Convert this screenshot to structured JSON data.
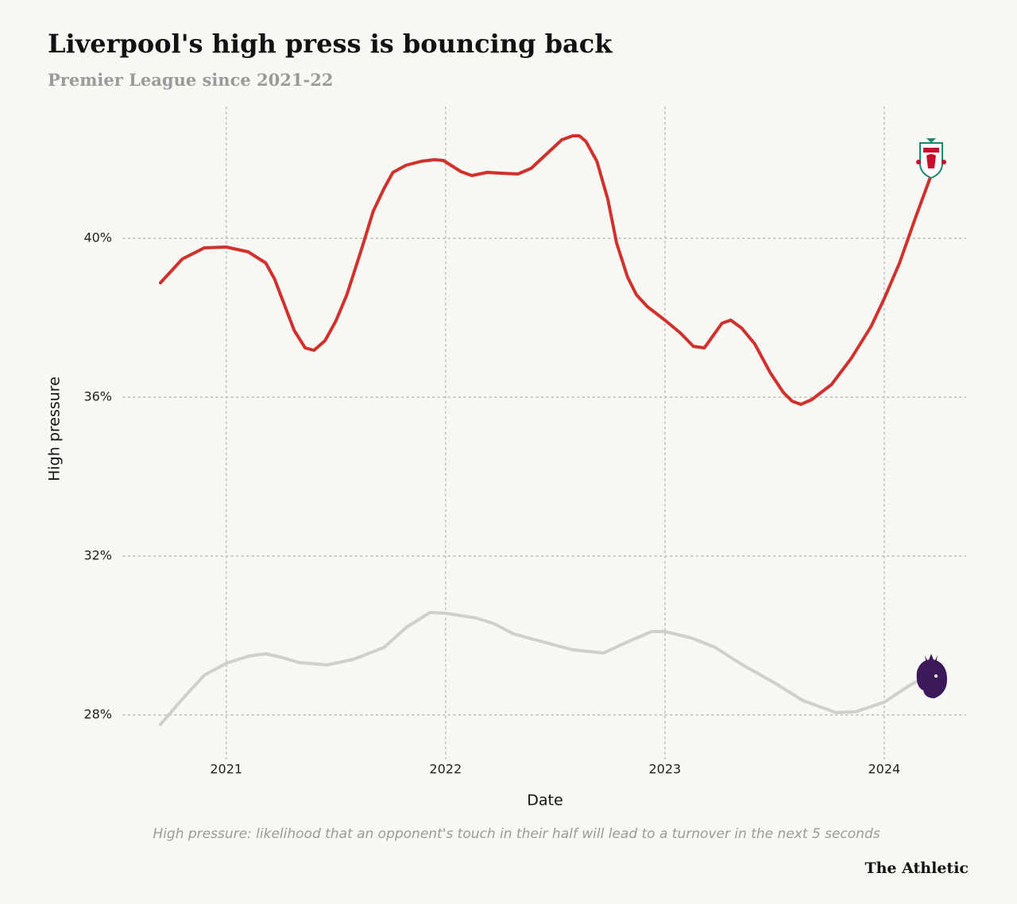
{
  "chart_data": {
    "type": "line",
    "title": "Liverpool's high press is bouncing back",
    "subtitle": "Premier League since 2021-22",
    "x_label": "Date",
    "y_label": "High pressure",
    "note": "High pressure: likelihood that an opponent's touch in their half will lead to a turnover in the next 5 seconds",
    "source": "The Athletic",
    "xlim": [
      2020.53,
      2024.37
    ],
    "xticks": [
      2021,
      2022,
      2023,
      2024
    ],
    "ylim": [
      26.9,
      43.3
    ],
    "yticks": [
      {
        "value": 28,
        "label": "28%"
      },
      {
        "value": 32,
        "label": "32%"
      },
      {
        "value": 36,
        "label": "36%"
      },
      {
        "value": 40,
        "label": "40%"
      }
    ],
    "grid": true,
    "series": [
      {
        "color": "#d0312d",
        "x": [
          2020.7,
          2020.8,
          2020.9,
          2021.0,
          2021.1,
          2021.18,
          2021.22,
          2021.31,
          2021.36,
          2021.4,
          2021.45,
          2021.5,
          2021.55,
          2021.62,
          2021.67,
          2021.72,
          2021.76,
          2021.82,
          2021.89,
          2021.95,
          2021.99,
          2022.07,
          2022.12,
          2022.19,
          2022.25,
          2022.33,
          2022.39,
          2022.46,
          2022.53,
          2022.58,
          2022.61,
          2022.64,
          2022.69,
          2022.74,
          2022.78,
          2022.83,
          2022.87,
          2022.92,
          2023.0,
          2023.07,
          2023.13,
          2023.18,
          2023.26,
          2023.3,
          2023.35,
          2023.41,
          2023.48,
          2023.54,
          2023.58,
          2023.62,
          2023.67,
          2023.76,
          2023.85,
          2023.94,
          2024.0,
          2024.07,
          2024.14,
          2024.22
        ],
        "values": [
          38.88,
          39.48,
          39.76,
          39.78,
          39.66,
          39.38,
          38.98,
          37.68,
          37.24,
          37.18,
          37.42,
          37.92,
          38.58,
          39.78,
          40.68,
          41.26,
          41.66,
          41.84,
          41.94,
          41.98,
          41.96,
          41.68,
          41.58,
          41.66,
          41.64,
          41.62,
          41.76,
          42.12,
          42.48,
          42.58,
          42.58,
          42.44,
          41.94,
          40.98,
          39.88,
          39.02,
          38.58,
          38.28,
          37.94,
          37.62,
          37.28,
          37.24,
          37.86,
          37.94,
          37.74,
          37.34,
          36.62,
          36.12,
          35.9,
          35.82,
          35.94,
          36.32,
          36.98,
          37.78,
          38.48,
          39.38,
          40.48,
          41.68
        ]
      },
      {
        "color": "#cfcfcb",
        "x": [
          2020.7,
          2020.8,
          2020.9,
          2021.0,
          2021.1,
          2021.18,
          2021.26,
          2021.33,
          2021.46,
          2021.58,
          2021.72,
          2021.82,
          2021.93,
          2022.0,
          2022.14,
          2022.22,
          2022.31,
          2022.43,
          2022.58,
          2022.72,
          2022.83,
          2022.94,
          2023.0,
          2023.12,
          2023.23,
          2023.36,
          2023.49,
          2023.63,
          2023.78,
          2023.87,
          2024.0,
          2024.12,
          2024.2
        ],
        "values": [
          27.76,
          28.4,
          29.0,
          29.3,
          29.48,
          29.54,
          29.44,
          29.32,
          29.26,
          29.4,
          29.7,
          30.2,
          30.58,
          30.56,
          30.44,
          30.3,
          30.04,
          29.86,
          29.64,
          29.56,
          29.84,
          30.1,
          30.1,
          29.94,
          29.7,
          29.24,
          28.84,
          28.36,
          28.06,
          28.08,
          28.32,
          28.76,
          29.0
        ]
      }
    ]
  }
}
